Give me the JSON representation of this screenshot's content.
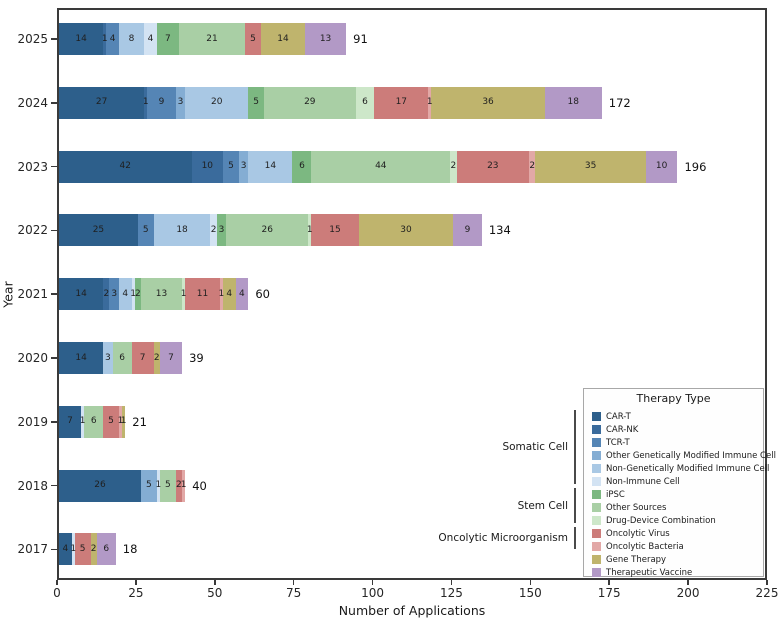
{
  "chart_data": {
    "type": "bar",
    "orientation": "horizontal",
    "stacked": true,
    "title": "",
    "xlabel": "Number of Applications",
    "ylabel": "Year",
    "xlim": [
      0,
      225
    ],
    "xticks": [
      0,
      25,
      50,
      75,
      100,
      125,
      150,
      175,
      200,
      225
    ],
    "grid": false,
    "legend": {
      "title": "Therapy Type",
      "position": "lower right",
      "items": [
        {
          "label": "CAR-T",
          "color": "#2d5f8b"
        },
        {
          "label": "CAR-NK",
          "color": "#3a6b9c"
        },
        {
          "label": "TCR-T",
          "color": "#5585b5"
        },
        {
          "label": "Other Genetically Modified Immune Cell",
          "color": "#84add3"
        },
        {
          "label": "Non-Genetically Modified Immune Cell",
          "color": "#a9c8e4"
        },
        {
          "label": "Non-Immune Cell",
          "color": "#d3e3f3"
        },
        {
          "label": "iPSC",
          "color": "#7cb881"
        },
        {
          "label": "Other Sources",
          "color": "#a9cfa5"
        },
        {
          "label": "Drug-Device Combination",
          "color": "#cde7c9"
        },
        {
          "label": "Oncolytic Virus",
          "color": "#cc7c7a"
        },
        {
          "label": "Oncolytic Bacteria",
          "color": "#e2a8a6"
        },
        {
          "label": "Gene Therapy",
          "color": "#bfb46d"
        },
        {
          "label": "Therapeutic Vaccine",
          "color": "#b299c6"
        }
      ],
      "groups": [
        {
          "label": "Somatic Cell",
          "start": 0,
          "end": 5
        },
        {
          "label": "Stem Cell",
          "start": 6,
          "end": 8
        },
        {
          "label": "Oncolytic Microorganism",
          "start": 9,
          "end": 10
        }
      ]
    },
    "bars": [
      {
        "year": "2025",
        "total": 91,
        "segments": [
          {
            "type": "CAR-T",
            "value": 14
          },
          {
            "type": "CAR-NK",
            "value": 1
          },
          {
            "type": "TCR-T",
            "value": 4
          },
          {
            "type": "Non-Genetically Modified Immune Cell",
            "value": 8
          },
          {
            "type": "Non-Immune Cell",
            "value": 4
          },
          {
            "type": "iPSC",
            "value": 7
          },
          {
            "type": "Other Sources",
            "value": 21
          },
          {
            "type": "Oncolytic Virus",
            "value": 5
          },
          {
            "type": "Gene Therapy",
            "value": 14
          },
          {
            "type": "Therapeutic Vaccine",
            "value": 13
          }
        ]
      },
      {
        "year": "2024",
        "total": 172,
        "segments": [
          {
            "type": "CAR-T",
            "value": 27
          },
          {
            "type": "CAR-NK",
            "value": 1
          },
          {
            "type": "TCR-T",
            "value": 9
          },
          {
            "type": "Other Genetically Modified Immune Cell",
            "value": 3
          },
          {
            "type": "Non-Genetically Modified Immune Cell",
            "value": 20
          },
          {
            "type": "iPSC",
            "value": 5
          },
          {
            "type": "Other Sources",
            "value": 29
          },
          {
            "type": "Drug-Device Combination",
            "value": 6
          },
          {
            "type": "Oncolytic Virus",
            "value": 17
          },
          {
            "type": "Oncolytic Bacteria",
            "value": 1
          },
          {
            "type": "Gene Therapy",
            "value": 36
          },
          {
            "type": "Therapeutic Vaccine",
            "value": 18
          }
        ]
      },
      {
        "year": "2023",
        "total": 196,
        "segments": [
          {
            "type": "CAR-T",
            "value": 42
          },
          {
            "type": "CAR-NK",
            "value": 10
          },
          {
            "type": "TCR-T",
            "value": 5
          },
          {
            "type": "Other Genetically Modified Immune Cell",
            "value": 3
          },
          {
            "type": "Non-Genetically Modified Immune Cell",
            "value": 14
          },
          {
            "type": "iPSC",
            "value": 6
          },
          {
            "type": "Other Sources",
            "value": 44
          },
          {
            "type": "Drug-Device Combination",
            "value": 2
          },
          {
            "type": "Oncolytic Virus",
            "value": 23
          },
          {
            "type": "Oncolytic Bacteria",
            "value": 2
          },
          {
            "type": "Gene Therapy",
            "value": 35
          },
          {
            "type": "Therapeutic Vaccine",
            "value": 10
          }
        ]
      },
      {
        "year": "2022",
        "total": 134,
        "segments": [
          {
            "type": "CAR-T",
            "value": 25
          },
          {
            "type": "TCR-T",
            "value": 5
          },
          {
            "type": "Non-Genetically Modified Immune Cell",
            "value": 18
          },
          {
            "type": "Non-Immune Cell",
            "value": 2
          },
          {
            "type": "iPSC",
            "value": 3
          },
          {
            "type": "Other Sources",
            "value": 26
          },
          {
            "type": "Drug-Device Combination",
            "value": 1
          },
          {
            "type": "Oncolytic Virus",
            "value": 15
          },
          {
            "type": "Gene Therapy",
            "value": 30
          },
          {
            "type": "Therapeutic Vaccine",
            "value": 9
          }
        ]
      },
      {
        "year": "2021",
        "total": 60,
        "segments": [
          {
            "type": "CAR-T",
            "value": 14
          },
          {
            "type": "CAR-NK",
            "value": 2
          },
          {
            "type": "TCR-T",
            "value": 3
          },
          {
            "type": "Non-Genetically Modified Immune Cell",
            "value": 4
          },
          {
            "type": "Non-Immune Cell",
            "value": 1
          },
          {
            "type": "iPSC",
            "value": 2
          },
          {
            "type": "Other Sources",
            "value": 13
          },
          {
            "type": "Drug-Device Combination",
            "value": 1
          },
          {
            "type": "Oncolytic Virus",
            "value": 11
          },
          {
            "type": "Oncolytic Bacteria",
            "value": 1
          },
          {
            "type": "Gene Therapy",
            "value": 4
          },
          {
            "type": "Therapeutic Vaccine",
            "value": 4
          }
        ]
      },
      {
        "year": "2020",
        "total": 39,
        "segments": [
          {
            "type": "CAR-T",
            "value": 14
          },
          {
            "type": "Non-Genetically Modified Immune Cell",
            "value": 3
          },
          {
            "type": "Other Sources",
            "value": 6
          },
          {
            "type": "Oncolytic Virus",
            "value": 7
          },
          {
            "type": "Gene Therapy",
            "value": 2
          },
          {
            "type": "Therapeutic Vaccine",
            "value": 7
          }
        ]
      },
      {
        "year": "2019",
        "total": 21,
        "segments": [
          {
            "type": "CAR-T",
            "value": 7
          },
          {
            "type": "Non-Immune Cell",
            "value": 1
          },
          {
            "type": "Other Sources",
            "value": 6
          },
          {
            "type": "Oncolytic Virus",
            "value": 5
          },
          {
            "type": "Oncolytic Bacteria",
            "value": 1
          },
          {
            "type": "Gene Therapy",
            "value": 1
          }
        ]
      },
      {
        "year": "2018",
        "total": 40,
        "segments": [
          {
            "type": "CAR-T",
            "value": 26
          },
          {
            "type": "Other Genetically Modified Immune Cell",
            "value": 5
          },
          {
            "type": "Non-Immune Cell",
            "value": 1
          },
          {
            "type": "Other Sources",
            "value": 5
          },
          {
            "type": "Oncolytic Virus",
            "value": 2
          },
          {
            "type": "Oncolytic Bacteria",
            "value": 1
          }
        ]
      },
      {
        "year": "2017",
        "total": 18,
        "segments": [
          {
            "type": "CAR-T",
            "value": 4
          },
          {
            "type": "Non-Immune Cell",
            "value": 1
          },
          {
            "type": "Oncolytic Virus",
            "value": 5
          },
          {
            "type": "Gene Therapy",
            "value": 2
          },
          {
            "type": "Therapeutic Vaccine",
            "value": 6
          }
        ]
      }
    ]
  }
}
